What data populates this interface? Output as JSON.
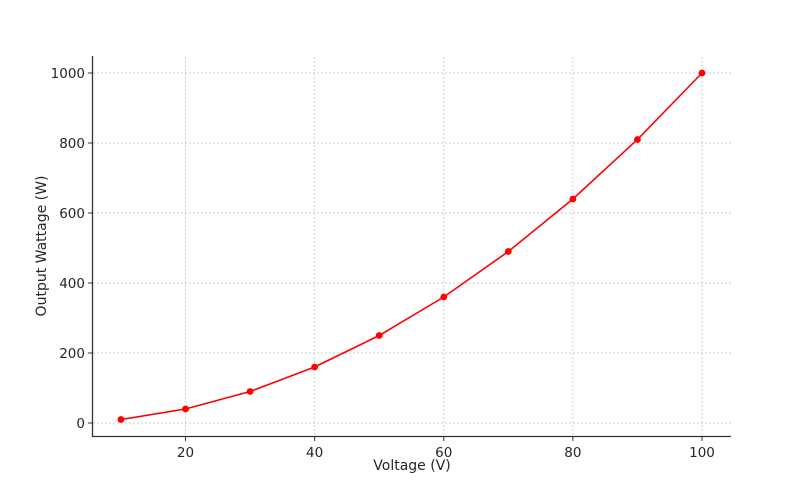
{
  "chart_data": {
    "type": "line",
    "title": "",
    "xlabel": "Voltage (V)",
    "ylabel": "Output Wattage (W)",
    "x": [
      10,
      20,
      30,
      40,
      50,
      60,
      70,
      80,
      90,
      100
    ],
    "series": [
      {
        "name": "Output Wattage",
        "values": [
          10,
          40,
          90,
          160,
          250,
          360,
          490,
          640,
          810,
          1000
        ],
        "color": "#ff0000",
        "marker": "circle"
      }
    ],
    "xticks": [
      20,
      40,
      60,
      80,
      100
    ],
    "yticks": [
      0,
      200,
      400,
      600,
      800,
      1000
    ],
    "xlim": [
      5.5,
      104.5
    ],
    "ylim": [
      -40,
      1050
    ],
    "grid": true,
    "legend": null
  }
}
